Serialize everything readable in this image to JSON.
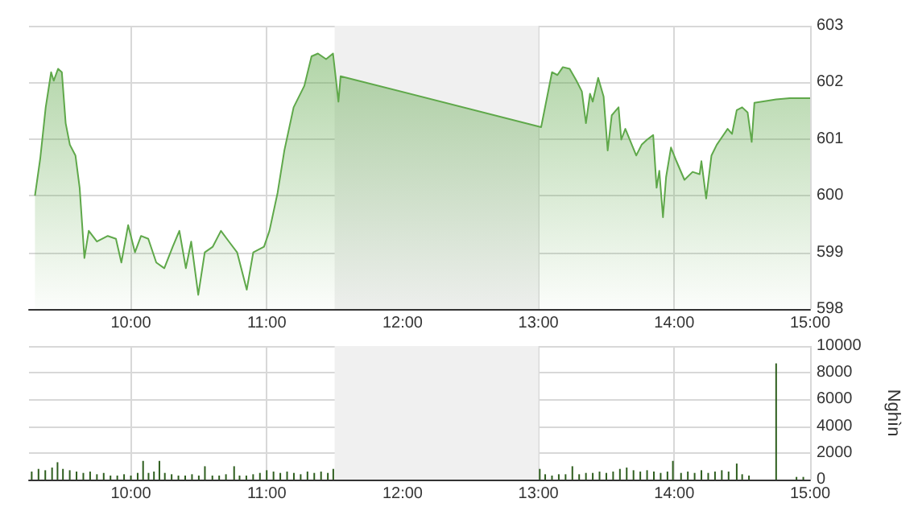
{
  "chart_data": [
    {
      "type": "area",
      "color": "#5fa84a",
      "grid": true,
      "x": [
        9.294,
        9.333,
        9.373,
        9.413,
        9.432,
        9.464,
        9.492,
        9.52,
        9.551,
        9.592,
        9.623,
        9.658,
        9.69,
        9.75,
        9.83,
        9.89,
        9.93,
        9.98,
        10.03,
        10.075,
        10.128,
        10.187,
        10.246,
        10.308,
        10.357,
        10.405,
        10.444,
        10.496,
        10.544,
        10.603,
        10.663,
        10.722,
        10.782,
        10.853,
        10.901,
        10.98,
        11.02,
        11.08,
        11.13,
        11.198,
        11.277,
        11.33,
        11.377,
        11.437,
        11.488,
        11.528,
        11.544,
        13.02,
        13.1,
        13.14,
        13.18,
        13.23,
        13.28,
        13.32,
        13.35,
        13.38,
        13.4,
        13.44,
        13.48,
        13.51,
        13.54,
        13.59,
        13.61,
        13.64,
        13.72,
        13.76,
        13.8,
        13.845,
        13.87,
        13.89,
        13.917,
        13.94,
        13.976,
        14.016,
        14.075,
        14.135,
        14.187,
        14.2,
        14.235,
        14.274,
        14.313,
        14.353,
        14.393,
        14.425,
        14.46,
        14.5,
        14.54,
        14.57,
        14.59,
        14.75,
        14.85,
        15.0
      ],
      "values": [
        600.0,
        600.66,
        601.56,
        602.18,
        602.03,
        602.24,
        602.18,
        601.28,
        600.9,
        600.71,
        600.14,
        598.9,
        599.38,
        599.19,
        599.29,
        599.24,
        598.82,
        599.48,
        599.0,
        599.29,
        599.24,
        598.82,
        598.72,
        599.1,
        599.38,
        598.72,
        599.19,
        598.25,
        599.0,
        599.1,
        599.38,
        599.19,
        599.0,
        598.34,
        599.0,
        599.1,
        599.38,
        600.05,
        600.8,
        601.56,
        601.94,
        602.46,
        602.51,
        602.41,
        602.51,
        601.66,
        602.11,
        601.21,
        602.18,
        602.13,
        602.27,
        602.24,
        602.03,
        601.84,
        601.28,
        601.8,
        601.66,
        602.08,
        601.75,
        600.8,
        601.42,
        601.56,
        600.99,
        601.18,
        600.71,
        600.9,
        600.99,
        601.07,
        600.14,
        600.44,
        599.62,
        600.33,
        600.85,
        600.61,
        600.28,
        600.42,
        600.38,
        600.61,
        599.95,
        600.71,
        600.9,
        601.04,
        601.18,
        601.09,
        601.51,
        601.56,
        601.47,
        600.95,
        601.64,
        601.7,
        601.72,
        601.72
      ],
      "xlim": [
        9.25,
        15
      ],
      "xticks": [
        {
          "value": 10,
          "label": "10:00"
        },
        {
          "value": 11,
          "label": "11:00"
        },
        {
          "value": 12,
          "label": "12:00"
        },
        {
          "value": 13,
          "label": "13:00"
        },
        {
          "value": 14,
          "label": "14:00"
        },
        {
          "value": 15,
          "label": "15:00"
        }
      ],
      "ylim": [
        598,
        603
      ],
      "yticks": [
        598,
        599,
        600,
        601,
        602,
        603
      ],
      "bands": [
        {
          "axis": "x",
          "from": 11.5,
          "to": 13,
          "color": "#f0f0f0"
        }
      ]
    },
    {
      "type": "bar",
      "color": "#2e5e1e",
      "grid": true,
      "ylabel": "Nghìn",
      "x": [
        9.27,
        9.32,
        9.37,
        9.42,
        9.46,
        9.5,
        9.55,
        9.6,
        9.65,
        9.7,
        9.75,
        9.8,
        9.85,
        9.9,
        9.95,
        10.0,
        10.05,
        10.09,
        10.13,
        10.17,
        10.21,
        10.25,
        10.3,
        10.35,
        10.4,
        10.45,
        10.5,
        10.545,
        10.6,
        10.65,
        10.7,
        10.76,
        10.8,
        10.85,
        10.9,
        10.95,
        11.0,
        11.05,
        11.1,
        11.15,
        11.2,
        11.25,
        11.3,
        11.35,
        11.4,
        11.45,
        11.49,
        13.01,
        13.05,
        13.1,
        13.15,
        13.2,
        13.25,
        13.3,
        13.35,
        13.4,
        13.45,
        13.5,
        13.55,
        13.6,
        13.65,
        13.7,
        13.75,
        13.8,
        13.85,
        13.9,
        13.95,
        13.99,
        14.05,
        14.1,
        14.15,
        14.2,
        14.25,
        14.3,
        14.35,
        14.4,
        14.46,
        14.5,
        14.55,
        14.75,
        14.9,
        14.95
      ],
      "values": [
        600,
        800,
        700,
        900,
        1300,
        800,
        700,
        600,
        500,
        600,
        400,
        500,
        300,
        300,
        400,
        300,
        500,
        1400,
        500,
        600,
        1400,
        500,
        400,
        300,
        300,
        400,
        300,
        1000,
        300,
        300,
        400,
        1000,
        300,
        300,
        400,
        500,
        700,
        600,
        500,
        600,
        500,
        400,
        600,
        500,
        600,
        500,
        800,
        800,
        400,
        300,
        400,
        400,
        1000,
        400,
        500,
        500,
        600,
        500,
        600,
        800,
        900,
        700,
        600,
        700,
        600,
        500,
        600,
        1400,
        500,
        600,
        500,
        700,
        500,
        600,
        700,
        600,
        1200,
        400,
        300,
        8700,
        200,
        200
      ],
      "xlim": [
        9.25,
        15
      ],
      "xticks": [
        {
          "value": 10,
          "label": "10:00"
        },
        {
          "value": 11,
          "label": "11:00"
        },
        {
          "value": 12,
          "label": "12:00"
        },
        {
          "value": 13,
          "label": "13:00"
        },
        {
          "value": 14,
          "label": "14:00"
        },
        {
          "value": 15,
          "label": "15:00"
        }
      ],
      "ylim": [
        0,
        10000
      ],
      "yticks": [
        0,
        2000,
        4000,
        6000,
        8000,
        10000
      ],
      "bands": [
        {
          "axis": "x",
          "from": 11.5,
          "to": 13,
          "color": "#f0f0f0"
        }
      ]
    }
  ]
}
